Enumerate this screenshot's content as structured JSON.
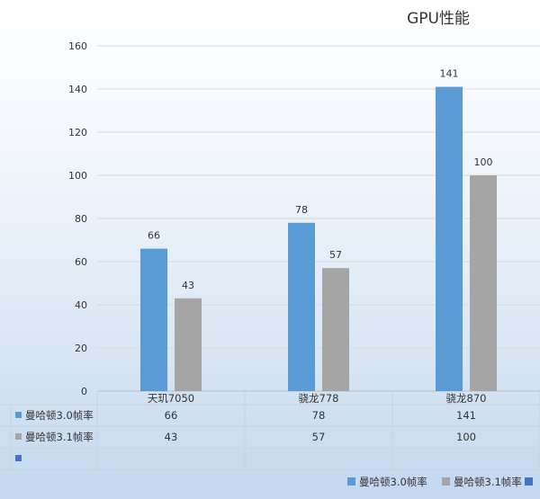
{
  "chart_data": {
    "type": "bar",
    "title": "GPU性能",
    "categories": [
      "天玑7050",
      "骁龙778",
      "骁龙870"
    ],
    "series": [
      {
        "name": "曼哈顿3.0帧率",
        "values": [
          66,
          78,
          141
        ],
        "color": "#5b9bd5"
      },
      {
        "name": "曼哈顿3.1帧率",
        "values": [
          43,
          57,
          100
        ],
        "color": "#a5a5a5"
      }
    ],
    "extra_table_row_color": "#4472c4",
    "ylim": [
      0,
      160
    ],
    "yticks": [
      0,
      20,
      40,
      60,
      80,
      100,
      120,
      140,
      160
    ],
    "grid": true,
    "legend": "bottom-right",
    "data_table": true
  }
}
